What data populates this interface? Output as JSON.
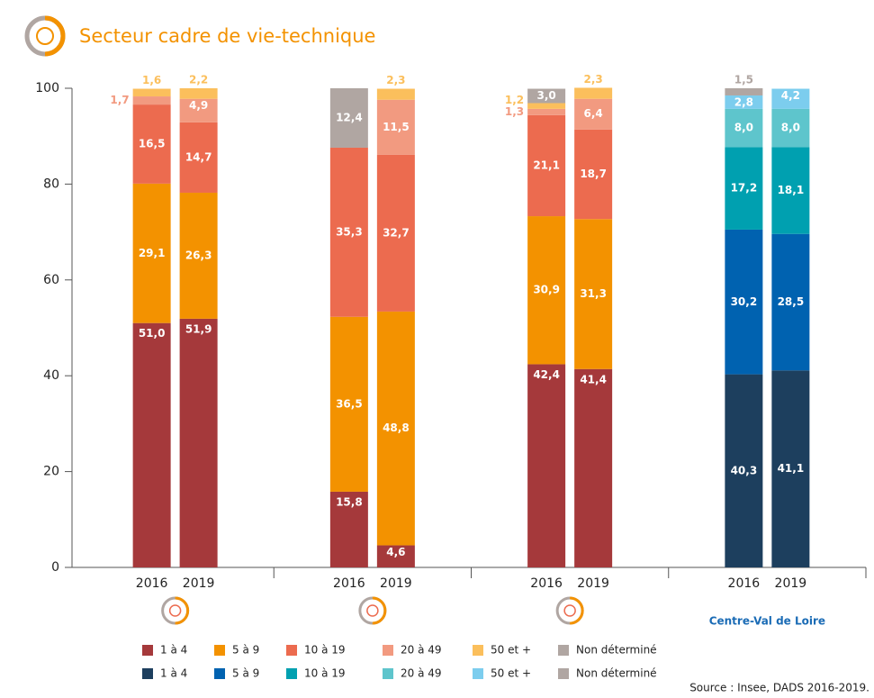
{
  "chart_data": {
    "type": "stacked_bar",
    "title": "Secteur cadre de vie-technique",
    "source": "Source : Insee, DADS 2016-2019.",
    "categories": [
      "2016",
      "2019",
      "2016",
      "2019",
      "2016",
      "2019",
      "2016",
      "2019"
    ],
    "groups": [
      null,
      null,
      null,
      "Centre-Val de Loire"
    ],
    "ylim": [
      0,
      100
    ],
    "yticks": [
      0,
      20,
      40,
      60,
      80,
      100
    ],
    "series": [
      {
        "name": "1 à 4",
        "color": "#a5393b",
        "values": [
          51.0,
          51.9,
          15.8,
          4.6,
          42.4,
          41.4,
          null,
          null
        ],
        "value_labels": [
          "51,0",
          "51,9",
          "15,8",
          "4,6",
          "42,4",
          "41,4",
          null,
          null
        ]
      },
      {
        "name": "5 à 9",
        "color": "#f39200",
        "values": [
          29.1,
          26.3,
          36.5,
          48.8,
          30.9,
          31.3,
          null,
          null
        ],
        "value_labels": [
          "29,1",
          "26,3",
          "36,5",
          "48,8",
          "30,9",
          "31,3",
          null,
          null
        ]
      },
      {
        "name": "10 à 19",
        "color": "#ec6b4f",
        "values": [
          16.5,
          14.7,
          35.3,
          32.7,
          21.1,
          18.7,
          null,
          null
        ],
        "value_labels": [
          "16,5",
          "14,7",
          "35,3",
          "32,7",
          "21,1",
          "18,7",
          null,
          null
        ]
      },
      {
        "name": "20 à 49",
        "color": "#f29a80",
        "values": [
          1.7,
          4.9,
          null,
          11.5,
          1.3,
          6.4,
          null,
          null
        ],
        "value_labels": [
          "1,7",
          "4,9",
          null,
          "11,5",
          "1,3",
          "6,4",
          null,
          null
        ]
      },
      {
        "name": "50 et +",
        "color": "#fbbf5c",
        "values": [
          1.6,
          2.2,
          null,
          2.3,
          1.2,
          2.3,
          null,
          null
        ],
        "value_labels": [
          "1,6",
          "2,2",
          null,
          "2,3",
          "1,2",
          "2,3",
          null,
          null
        ]
      },
      {
        "name": "Non déterminé",
        "color": "#b0a6a2",
        "values": [
          null,
          null,
          12.4,
          null,
          3.0,
          null,
          null,
          null
        ],
        "value_labels": [
          null,
          null,
          "12,4",
          null,
          "3,0",
          null,
          null,
          null
        ]
      },
      {
        "name": "1 à 4",
        "color": "#1d3f5e",
        "values": [
          null,
          null,
          null,
          null,
          null,
          null,
          40.3,
          41.1
        ],
        "value_labels": [
          null,
          null,
          null,
          null,
          null,
          null,
          "40,3",
          "41,1"
        ]
      },
      {
        "name": "5 à 9",
        "color": "#0062b0",
        "values": [
          null,
          null,
          null,
          null,
          null,
          null,
          30.2,
          28.5
        ],
        "value_labels": [
          null,
          null,
          null,
          null,
          null,
          null,
          "30,2",
          "28,5"
        ]
      },
      {
        "name": "10 à 19",
        "color": "#00a0b0",
        "values": [
          null,
          null,
          null,
          null,
          null,
          null,
          17.2,
          18.1
        ],
        "value_labels": [
          null,
          null,
          null,
          null,
          null,
          null,
          "17,2",
          "18,1"
        ]
      },
      {
        "name": "20 à 49",
        "color": "#5ec5cc",
        "values": [
          null,
          null,
          null,
          null,
          null,
          null,
          8.0,
          8.0
        ],
        "value_labels": [
          null,
          null,
          null,
          null,
          null,
          null,
          "8,0",
          "8,0"
        ]
      },
      {
        "name": "50 et +",
        "color": "#7ccdee",
        "values": [
          null,
          null,
          null,
          null,
          null,
          null,
          2.8,
          4.2
        ],
        "value_labels": [
          null,
          null,
          null,
          null,
          null,
          null,
          "2,8",
          "4,2"
        ]
      },
      {
        "name": "Non déterminé",
        "color": "#b0a6a2",
        "values": [
          null,
          null,
          null,
          null,
          null,
          null,
          1.5,
          null
        ],
        "value_labels": [
          null,
          null,
          null,
          null,
          null,
          null,
          "1,5",
          null
        ]
      }
    ]
  }
}
